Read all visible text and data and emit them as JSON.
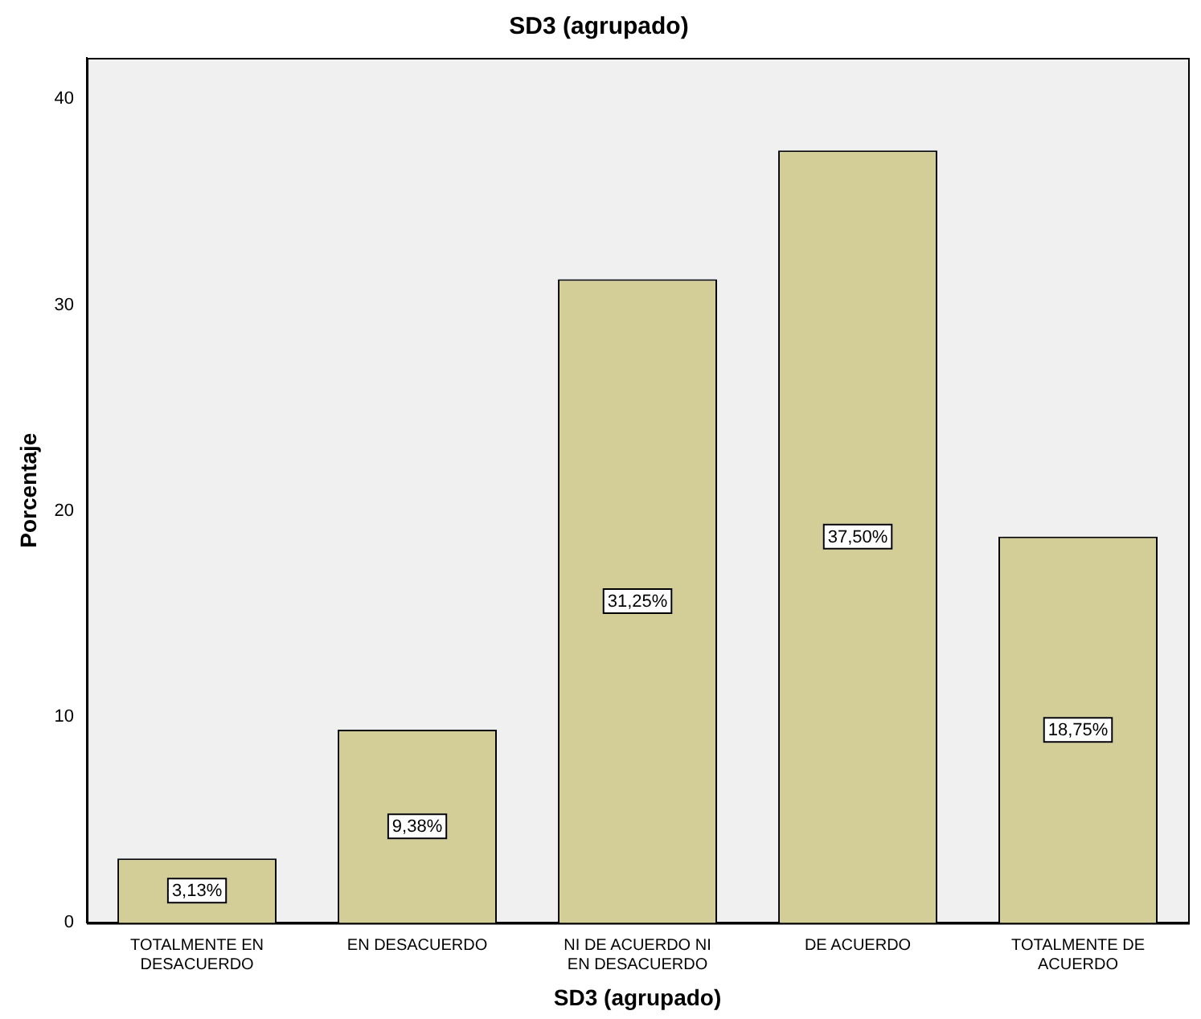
{
  "chart_data": {
    "type": "bar",
    "title": "SD3 (agrupado)",
    "xlabel": "SD3 (agrupado)",
    "ylabel": "Porcentaje",
    "categories": [
      "TOTALMENTE EN DESACUERDO",
      "EN DESACUERDO",
      "NI DE ACUERDO NI EN DESACUERDO",
      "DE ACUERDO",
      "TOTALMENTE DE ACUERDO"
    ],
    "values": [
      3.13,
      9.38,
      31.25,
      37.5,
      18.75
    ],
    "value_labels": [
      "3,13%",
      "9,38%",
      "31,25%",
      "37,50%",
      "18,75%"
    ],
    "color": "#d3ce98",
    "ylim": [
      0,
      42
    ],
    "yticks": [
      0,
      10,
      20,
      30,
      40
    ],
    "grid": false,
    "legend": false
  }
}
